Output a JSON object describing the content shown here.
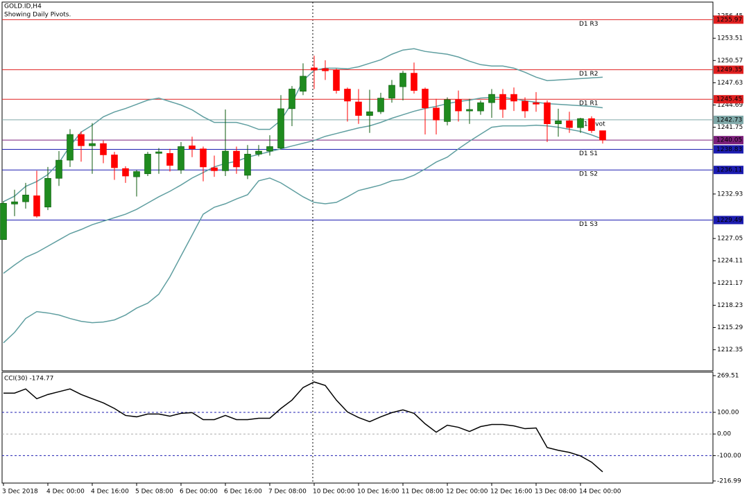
{
  "chart_data": [
    {
      "type": "candlestick",
      "title": "GOLD.ID,H4",
      "subtitle": "Showing Daily Pivots.",
      "categories": [
        "3 Dec 2018",
        null,
        null,
        null,
        "4 Dec 00:00",
        null,
        null,
        null,
        "4 Dec 16:00",
        null,
        null,
        null,
        "5 Dec 08:00",
        null,
        null,
        null,
        "6 Dec 00:00",
        null,
        null,
        null,
        "6 Dec 16:00",
        null,
        null,
        null,
        "7 Dec 08:00",
        null,
        null,
        null,
        "10 Dec 00:00",
        null,
        null,
        null,
        "10 Dec 16:00",
        null,
        null,
        null,
        "11 Dec 08:00",
        null,
        null,
        null,
        "12 Dec 00:00",
        null,
        null,
        null,
        "12 Dec 16:00",
        null,
        null,
        null,
        "13 Dec 08:00",
        null,
        null,
        null,
        "14 Dec 00:00",
        null,
        null
      ],
      "open": [
        1226.9,
        1231.6,
        1231.9,
        1232.7,
        1231.2,
        1235,
        1237.4,
        1240.8,
        1239.3,
        1239.6,
        1238.1,
        1236.3,
        1235.2,
        1235.6,
        1238.3,
        1238.3,
        1236.1,
        1239.3,
        1238.9,
        1236.4,
        1236,
        1238.6,
        1235.4,
        1238.2,
        1238.6,
        1239,
        1244.2,
        1246.5,
        1249.6,
        1249.5,
        1249.3,
        1246.8,
        1245.1,
        1243.3,
        1243.8,
        1245.6,
        1247.1,
        1248.9,
        1246.8,
        1244.3,
        1242.5,
        1245.4,
        1243.9,
        1243.9,
        1245,
        1246.1,
        1246.1,
        1245.2,
        1245,
        1245,
        1242.2,
        1242.6,
        1241.7,
        1242.9,
        1241.3
      ],
      "high": [
        1232,
        1233.5,
        1234.4,
        1236,
        1236.5,
        1238.6,
        1241.5,
        1241.2,
        1242.3,
        1240,
        1238.5,
        1236.6,
        1236.1,
        1238.5,
        1239,
        1238.9,
        1239.8,
        1240.5,
        1239.2,
        1238,
        1244.1,
        1239.2,
        1239.4,
        1239.4,
        1240.7,
        1246,
        1247.2,
        1250.2,
        1251.2,
        1250.6,
        1249.5,
        1247,
        1246.8,
        1246.7,
        1246.3,
        1248,
        1249.2,
        1250.3,
        1247,
        1245.5,
        1245.7,
        1246.6,
        1245.5,
        1245.3,
        1246.8,
        1246.8,
        1247,
        1245.7,
        1246.4,
        1245.3,
        1244.2,
        1243.8,
        1243,
        1243.2,
        1241.3
      ],
      "low": [
        1226.9,
        1230,
        1231,
        1229.8,
        1230.8,
        1234,
        1236.5,
        1237.2,
        1235.6,
        1237,
        1234.8,
        1234.4,
        1232.6,
        1235.3,
        1235.6,
        1235.9,
        1235.6,
        1237.8,
        1234.6,
        1235.2,
        1235.3,
        1235.6,
        1234.9,
        1237.9,
        1238,
        1238.8,
        1241.9,
        1246,
        1246.8,
        1248,
        1246.2,
        1242.5,
        1242.2,
        1241,
        1243.5,
        1245,
        1245.3,
        1246.2,
        1240.8,
        1240.8,
        1242,
        1242.5,
        1242.2,
        1243.4,
        1243,
        1243,
        1243.9,
        1243,
        1243.8,
        1239.8,
        1240.5,
        1241,
        1241,
        1241,
        1239.6
      ],
      "close": [
        1231.7,
        1231.9,
        1232.8,
        1230,
        1235,
        1237.4,
        1240.8,
        1239.3,
        1239.6,
        1238.1,
        1236.4,
        1235.3,
        1235.9,
        1238.2,
        1238.5,
        1236.7,
        1239.2,
        1238.9,
        1236.5,
        1236,
        1238.6,
        1236.5,
        1238.2,
        1238.6,
        1239.2,
        1244.2,
        1246.8,
        1248.5,
        1249.3,
        1249.2,
        1246.6,
        1245.2,
        1243.3,
        1243.8,
        1245.6,
        1247.3,
        1248.9,
        1246.6,
        1244.3,
        1242.7,
        1245.4,
        1243.9,
        1244.1,
        1245,
        1246.1,
        1244.1,
        1245.2,
        1243.9,
        1244.8,
        1242.2,
        1242.6,
        1241.7,
        1242.9,
        1241.3,
        1240.05
      ],
      "up_color": "#1f8b1f",
      "down_color": "#ff0000",
      "lines": [
        {
          "color": "#5f9ea0",
          "values": [
            1231.92,
            1232.65,
            1233.94,
            1234.58,
            1235.5,
            1237.06,
            1239.27,
            1241.11,
            1242.02,
            1243.13,
            1243.77,
            1244.23,
            1244.78,
            1245.33,
            1245.61,
            1245.15,
            1244.69,
            1244.05,
            1243.13,
            1242.39,
            1242.39,
            1242.39,
            1242.02,
            1241.47,
            1241.47,
            1242.67,
            1244.96,
            1247.91,
            1249.28,
            1249.56,
            1249.56,
            1249.47,
            1249.74,
            1250.2,
            1250.66,
            1251.4,
            1251.95,
            1252.13,
            1251.77,
            1251.58,
            1251.4,
            1251.03,
            1250.48,
            1250.02,
            1249.84,
            1249.84,
            1249.56,
            1249.01,
            1248.37,
            1247.91,
            1248.0,
            1248.09,
            1248.18,
            1248.27,
            1248.37
          ]
        },
        {
          "color": "#5f9ea0",
          "values": [
            1222.45,
            1223.55,
            1224.56,
            1225.21,
            1226.03,
            1226.86,
            1227.69,
            1228.24,
            1228.88,
            1229.34,
            1229.8,
            1230.26,
            1230.9,
            1231.73,
            1232.56,
            1233.29,
            1234.12,
            1235.04,
            1235.77,
            1236.51,
            1236.97,
            1237.25,
            1237.8,
            1238.16,
            1238.53,
            1238.9,
            1239.27,
            1239.63,
            1240.0,
            1240.55,
            1240.92,
            1241.29,
            1241.66,
            1241.93,
            1242.39,
            1242.94,
            1243.4,
            1243.86,
            1244.23,
            1244.51,
            1244.87,
            1245.15,
            1245.33,
            1245.61,
            1245.7,
            1245.7,
            1245.52,
            1245.24,
            1245.06,
            1244.87,
            1244.78,
            1244.69,
            1244.6,
            1244.51,
            1244.32
          ]
        },
        {
          "color": "#5f9ea0",
          "values": [
            1213.26,
            1214.64,
            1216.48,
            1217.39,
            1217.21,
            1216.94,
            1216.48,
            1216.11,
            1215.92,
            1216.02,
            1216.29,
            1216.94,
            1217.85,
            1218.5,
            1219.69,
            1221.99,
            1224.75,
            1227.5,
            1230.26,
            1231.18,
            1231.64,
            1232.28,
            1232.83,
            1234.67,
            1235.04,
            1234.4,
            1233.48,
            1232.56,
            1231.82,
            1231.64,
            1231.82,
            1232.56,
            1233.39,
            1233.75,
            1234.12,
            1234.67,
            1234.86,
            1235.41,
            1236.23,
            1237.15,
            1237.8,
            1238.9,
            1239.91,
            1240.83,
            1241.75,
            1241.93,
            1241.93,
            1241.93,
            1242.02,
            1241.93,
            1241.75,
            1241.47,
            1241.2,
            1240.74,
            1240.19
          ]
        }
      ],
      "levels": [
        {
          "name": "D1 R3",
          "value": 1255.97,
          "color": "#e02020"
        },
        {
          "name": "D1 R2",
          "value": 1249.35,
          "color": "#e02020"
        },
        {
          "name": "D1 R1",
          "value": 1245.45,
          "color": "#e02020"
        },
        {
          "name": "D1 Pivot",
          "value": 1242.73,
          "color": "#7fa8a8"
        },
        {
          "name": "D1 S1",
          "value": 1238.83,
          "color": "#1c1cb0"
        },
        {
          "name": "D1 S2",
          "value": 1236.11,
          "color": "#1c1cb0"
        },
        {
          "name": "D1 S3",
          "value": 1229.49,
          "color": "#1c1cb0"
        }
      ],
      "bid": {
        "value": 1240.05,
        "color": "#7b1f7b"
      },
      "ylim": [
        1209.57,
        1258.29
      ],
      "yticks": [
        1256.45,
        1253.51,
        1250.57,
        1247.63,
        1244.69,
        1241.75,
        1232.93,
        1227.05,
        1224.11,
        1221.17,
        1218.23,
        1215.29,
        1212.35
      ]
    },
    {
      "type": "line",
      "title": "CCI(30) -174.77",
      "series": [
        {
          "color": "#000000",
          "values": [
            188.8,
            188.8,
            208.1,
            163.0,
            182.4,
            195.3,
            208.1,
            182.4,
            163.0,
            143.7,
            117.9,
            85.7,
            79.3,
            92.1,
            92.1,
            82.5,
            95.4,
            98.6,
            66.4,
            66.4,
            85.7,
            66.4,
            66.4,
            72.8,
            72.8,
            117.9,
            156.6,
            214.6,
            240.4,
            224.3,
            156.6,
            101.8,
            76.0,
            56.7,
            79.3,
            98.6,
            111.5,
            95.4,
            47.0,
            8.4,
            40.6,
            30.9,
            11.6,
            34.2,
            43.8,
            43.8,
            37.4,
            24.5,
            27.7,
            -62.5,
            -75.4,
            -85.1,
            -101.2,
            -130.2,
            -174.77
          ]
        }
      ],
      "levels": [
        {
          "value": 100,
          "color": "#1c1cb0"
        },
        {
          "value": 0,
          "color": "#aaaaaa"
        },
        {
          "value": -100,
          "color": "#1c1cb0"
        }
      ],
      "ylim": [
        -226.7,
        285.6
      ],
      "yticks": [
        269.51,
        {
          "value": 100,
          "label": "100.00"
        },
        {
          "value": 0,
          "label": "0.00"
        },
        {
          "value": -100,
          "label": "-100.00"
        },
        -216.99
      ]
    }
  ]
}
